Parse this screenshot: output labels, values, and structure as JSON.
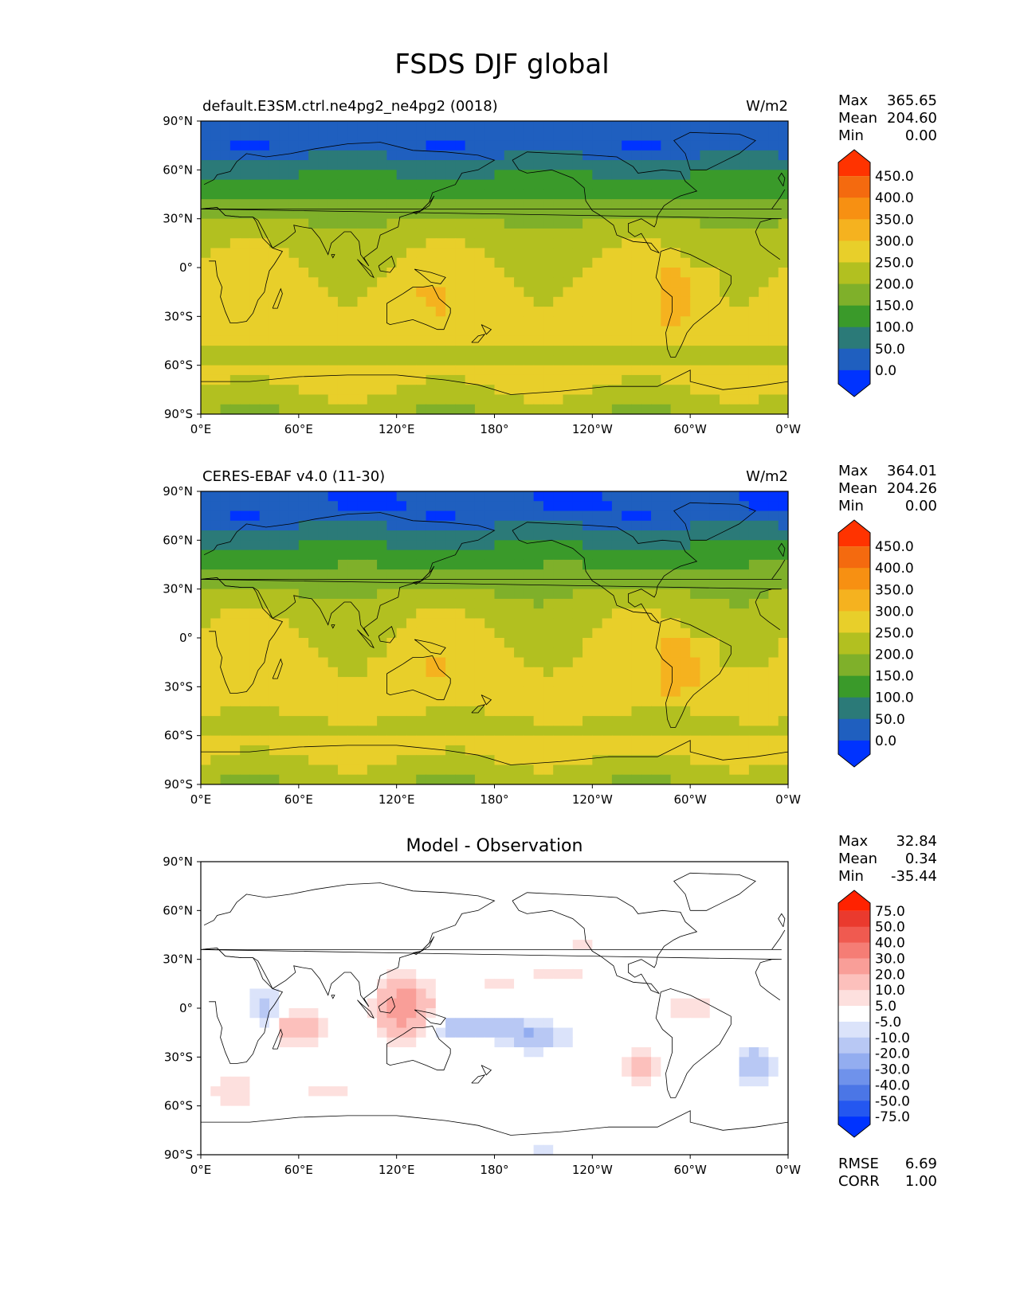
{
  "title": "FSDS DJF global",
  "colors": {
    "abs_levels": [
      "#0033ff",
      "#1f5fbf",
      "#2b7a78",
      "#3a9a2a",
      "#7fb02a",
      "#b2c020",
      "#e8cf2a",
      "#f5b21f",
      "#f79012",
      "#f46a0f",
      "#ff3300"
    ],
    "diff_levels": [
      "#0033ff",
      "#2457f0",
      "#4b76e6",
      "#6f92eb",
      "#93adf0",
      "#b8c8f4",
      "#dbe3fa",
      "#ffffff",
      "#fde0de",
      "#fcc0bc",
      "#f99e98",
      "#f57d75",
      "#f05a50",
      "#ea3a2e",
      "#ff2200"
    ],
    "coast": "#000000"
  },
  "chart_data": [
    {
      "type": "heatmap",
      "panel": "model",
      "title": "default.E3SM.ctrl.ne4pg2_ne4pg2 (0018)",
      "units": "W/m2",
      "stats": {
        "labels": [
          "Max",
          "Mean",
          "Min"
        ],
        "values": [
          "365.65",
          "204.60",
          "0.00"
        ]
      },
      "colorbar": {
        "extend": "both",
        "levels": [
          "0.0",
          "50.0",
          "100.0",
          "150.0",
          "200.0",
          "250.0",
          "300.0",
          "350.0",
          "400.0",
          "450.0"
        ]
      },
      "x_ticks": [
        "0°E",
        "60°E",
        "120°E",
        "180°",
        "120°W",
        "60°W",
        "0°W"
      ],
      "y_ticks": [
        "90°N",
        "60°N",
        "30°N",
        "0°",
        "30°S",
        "60°S",
        "90°S"
      ],
      "xlim": [
        0,
        360
      ],
      "ylim": [
        -90,
        90
      ]
    },
    {
      "type": "heatmap",
      "panel": "observation",
      "title": "CERES-EBAF v4.0 (11-30)",
      "units": "W/m2",
      "stats": {
        "labels": [
          "Max",
          "Mean",
          "Min"
        ],
        "values": [
          "364.01",
          "204.26",
          "0.00"
        ]
      },
      "colorbar": {
        "extend": "both",
        "levels": [
          "0.0",
          "50.0",
          "100.0",
          "150.0",
          "200.0",
          "250.0",
          "300.0",
          "350.0",
          "400.0",
          "450.0"
        ]
      },
      "x_ticks": [
        "0°E",
        "60°E",
        "120°E",
        "180°",
        "120°W",
        "60°W",
        "0°W"
      ],
      "y_ticks": [
        "90°N",
        "60°N",
        "30°N",
        "0°",
        "30°S",
        "60°S",
        "90°S"
      ],
      "xlim": [
        0,
        360
      ],
      "ylim": [
        -90,
        90
      ]
    },
    {
      "type": "heatmap",
      "panel": "difference",
      "title": "Model - Observation",
      "units": "",
      "stats": {
        "labels": [
          "Max",
          "Mean",
          "Min"
        ],
        "values": [
          "32.84",
          "0.34",
          "-35.44"
        ]
      },
      "colorbar": {
        "extend": "both",
        "levels": [
          "-75.0",
          "-50.0",
          "-40.0",
          "-30.0",
          "-20.0",
          "-10.0",
          "-5.0",
          "5.0",
          "10.0",
          "20.0",
          "30.0",
          "40.0",
          "50.0",
          "75.0"
        ]
      },
      "metrics": {
        "labels": [
          "RMSE",
          "CORR"
        ],
        "values": [
          "6.69",
          "1.00"
        ]
      },
      "x_ticks": [
        "0°E",
        "60°E",
        "120°E",
        "180°",
        "120°W",
        "60°W",
        "0°W"
      ],
      "y_ticks": [
        "90°N",
        "60°N",
        "30°N",
        "0°",
        "30°S",
        "60°S",
        "90°S"
      ],
      "xlim": [
        0,
        360
      ],
      "ylim": [
        -90,
        90
      ]
    }
  ]
}
